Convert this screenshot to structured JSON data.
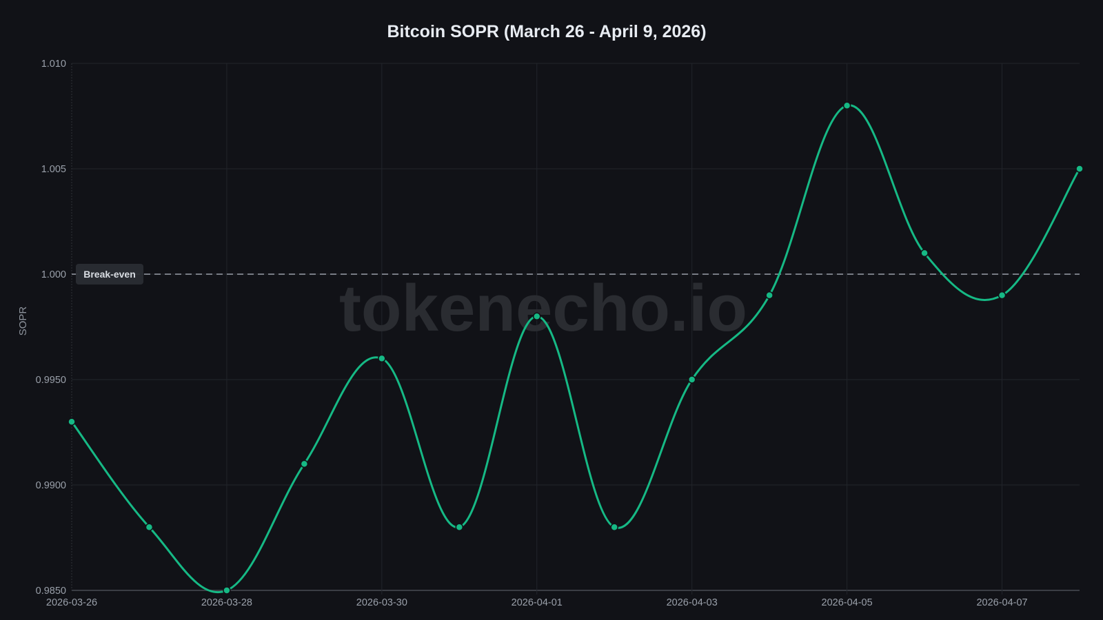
{
  "chart_data": {
    "type": "line",
    "title": "Bitcoin SOPR (March 26 - April 9, 2026)",
    "xlabel": "",
    "ylabel": "SOPR",
    "ylim": [
      0.985,
      1.01
    ],
    "grid": true,
    "legend": null,
    "x": [
      "2026-03-26",
      "2026-03-27",
      "2026-03-28",
      "2026-03-29",
      "2026-03-30",
      "2026-03-31",
      "2026-04-01",
      "2026-04-02",
      "2026-04-03",
      "2026-04-04",
      "2026-04-05",
      "2026-04-06",
      "2026-04-07",
      "2026-04-08"
    ],
    "series": [
      {
        "name": "SOPR",
        "color": "#16b985",
        "values": [
          0.993,
          0.988,
          0.985,
          0.991,
          0.996,
          0.988,
          0.998,
          0.988,
          0.995,
          0.999,
          1.008,
          1.001,
          0.999,
          1.005
        ]
      }
    ],
    "x_tick_labels": [
      "2026-03-26",
      "2026-03-28",
      "2026-03-30",
      "2026-04-01",
      "2026-04-03",
      "2026-04-05",
      "2026-04-07"
    ],
    "y_tick_labels": [
      "1.010",
      "1.005",
      "1.000",
      "0.9950",
      "0.9900",
      "0.9850"
    ],
    "y_tick_values": [
      1.01,
      1.005,
      1.0,
      0.995,
      0.99,
      0.985
    ],
    "annotations": [
      {
        "type": "hline",
        "y": 1.0,
        "style": "dashed",
        "label": "Break-even",
        "color": "#9aa0aa"
      }
    ],
    "watermark": "tokenecho.io"
  },
  "colors": {
    "background": "#111217",
    "line": "#16b985",
    "grid": "#22252b",
    "text": "#9aa0aa",
    "title": "#e8ecf2"
  }
}
